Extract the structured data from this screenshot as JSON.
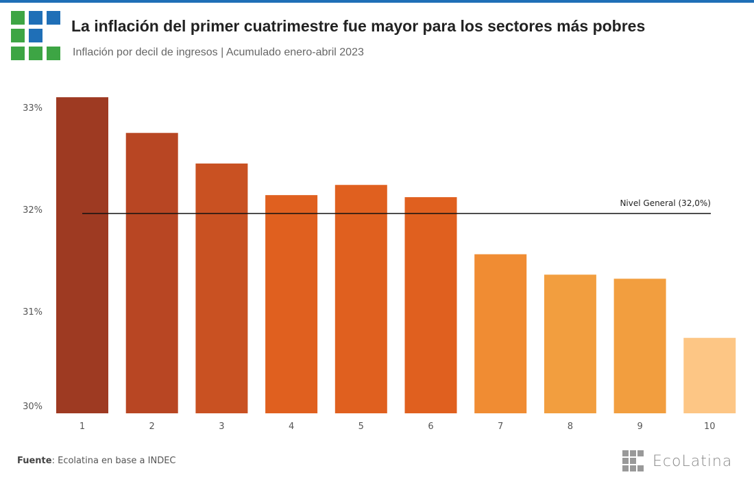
{
  "title": "La inflación del primer cuatrimestre fue mayor para los sectores más pobres",
  "subtitle": "Inflación por decil de ingresos | Acumulado enero-abril 2023",
  "source_label": "Fuente",
  "source_text": ": Ecolatina en base a INDEC",
  "brand": "EcoLatina",
  "colors": {
    "accent": "#1f6fb7",
    "logo_green": "#3da544",
    "logo_blue": "#1f6fb7"
  },
  "chart_data": {
    "type": "bar",
    "title": "La inflación del primer cuatrimestre fue mayor para los sectores más pobres",
    "subtitle": "Inflación por decil de ingresos | Acumulado enero-abril 2023",
    "xlabel": "",
    "ylabel": "",
    "categories": [
      "1",
      "2",
      "3",
      "4",
      "5",
      "6",
      "7",
      "8",
      "9",
      "10"
    ],
    "values": [
      33.1,
      32.75,
      32.45,
      32.14,
      32.24,
      32.12,
      31.56,
      31.36,
      31.32,
      30.74
    ],
    "bar_colors": [
      "#9e3a22",
      "#b84623",
      "#c95122",
      "#e0601f",
      "#e0601f",
      "#e0601f",
      "#f08c33",
      "#f29e3f",
      "#f29e3f",
      "#fdc685"
    ],
    "ylim": [
      30,
      33.3
    ],
    "yticks": [
      30,
      31,
      32,
      33
    ],
    "ytick_labels": [
      "30%",
      "31%",
      "32%",
      "33%"
    ],
    "reference_line": {
      "value": 32.0,
      "label": "Nivel General (32,0%)"
    },
    "grid": false,
    "legend": "none"
  }
}
